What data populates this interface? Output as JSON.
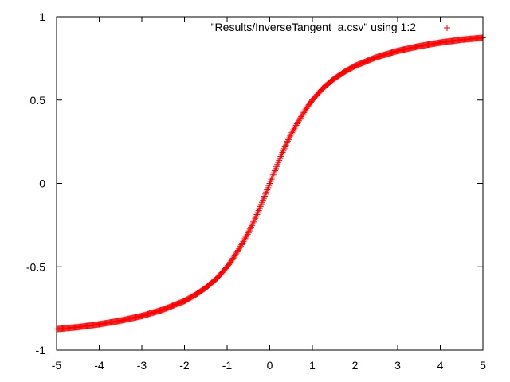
{
  "chart_data": {
    "type": "scatter",
    "title": "",
    "xlabel": "",
    "ylabel": "",
    "xlim": [
      -5,
      5
    ],
    "ylim": [
      -1,
      1
    ],
    "grid": false,
    "legend_position": "top-right",
    "x_ticks": [
      -5,
      -4,
      -3,
      -2,
      -1,
      0,
      1,
      2,
      3,
      4,
      5
    ],
    "x_tick_labels": [
      "-5",
      "-4",
      "-3",
      "-2",
      "-1",
      "0",
      "1",
      "2",
      "3",
      "4",
      "5"
    ],
    "y_ticks": [
      -1,
      -0.5,
      0,
      0.5,
      1
    ],
    "y_tick_labels": [
      "-1",
      "-0.5",
      "0",
      "0.5",
      "1"
    ],
    "series": [
      {
        "name": "\"Results/InverseTangent_a.csv\" using 1:2",
        "color": "#ff0000",
        "marker": "+",
        "x": [
          -5,
          -4.5,
          -4,
          -3.5,
          -3,
          -2.5,
          -2,
          -1.75,
          -1.5,
          -1.25,
          -1,
          -0.9,
          -0.8,
          -0.7,
          -0.6,
          -0.5,
          -0.4,
          -0.3,
          -0.2,
          -0.1,
          0,
          0.1,
          0.2,
          0.3,
          0.4,
          0.5,
          0.6,
          0.7,
          0.8,
          0.9,
          1,
          1.25,
          1.5,
          1.75,
          2,
          2.5,
          3,
          3.5,
          4,
          4.5,
          5
        ],
        "y": [
          -0.874,
          -0.862,
          -0.845,
          -0.823,
          -0.795,
          -0.757,
          -0.705,
          -0.669,
          -0.626,
          -0.572,
          -0.5,
          -0.465,
          -0.426,
          -0.385,
          -0.34,
          -0.295,
          -0.242,
          -0.186,
          -0.126,
          -0.064,
          0,
          0.064,
          0.126,
          0.186,
          0.242,
          0.295,
          0.34,
          0.385,
          0.426,
          0.465,
          0.5,
          0.572,
          0.626,
          0.669,
          0.705,
          0.757,
          0.795,
          0.823,
          0.845,
          0.862,
          0.874
        ]
      }
    ]
  }
}
